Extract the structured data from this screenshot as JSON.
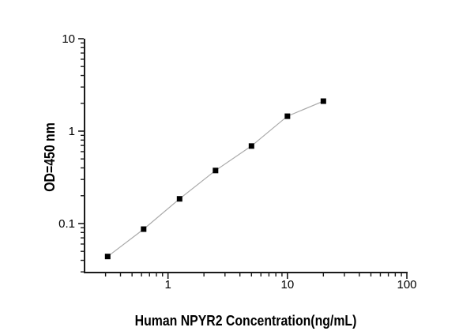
{
  "chart_data": {
    "type": "scatter",
    "title": "",
    "xlabel": "Human NPYR2 Concentration(ng/mL)",
    "ylabel": "OD=450 nm",
    "x_scale": "log",
    "y_scale": "log",
    "xlim": [
      0.2,
      100
    ],
    "ylim": [
      0.0295,
      10
    ],
    "x_major_ticks": [
      1,
      10,
      100
    ],
    "x_tick_labels": [
      "1",
      "10",
      "100"
    ],
    "y_major_ticks": [
      0.1,
      1,
      10
    ],
    "y_tick_labels": [
      "0.1",
      "1",
      "10"
    ],
    "grid": false,
    "legend": "none",
    "tick_direction": "out",
    "axis_color": "#1a1a1a",
    "background_color": "#ffffff",
    "series": [
      {
        "name": "standard-curve",
        "marker": "filled-square",
        "marker_color": "#000000",
        "line_color": "#a9a9a9",
        "x": [
          0.3125,
          0.625,
          1.25,
          2.5,
          5,
          10,
          20
        ],
        "y": [
          0.044,
          0.087,
          0.185,
          0.375,
          0.69,
          1.45,
          2.11
        ]
      }
    ]
  }
}
